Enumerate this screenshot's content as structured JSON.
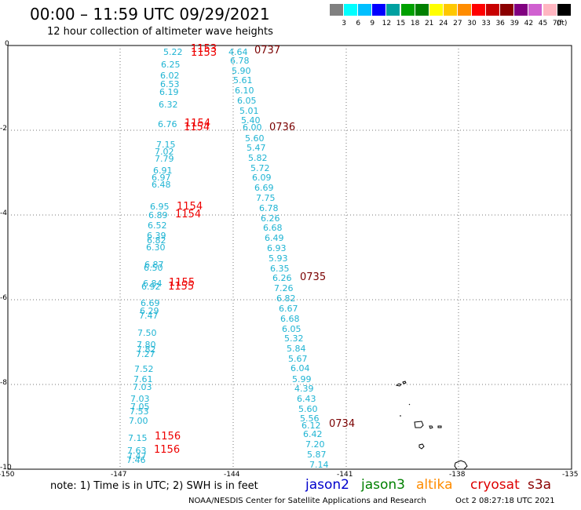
{
  "header": {
    "title": "00:00 – 11:59 UTC 09/29/2021",
    "subtitle": "12 hour collection of altimeter wave heights"
  },
  "legend": {
    "colors": [
      "#808080",
      "#00ffff",
      "#00bfff",
      "#0000ff",
      "#00a0a0",
      "#00a000",
      "#008000",
      "#ffff00",
      "#ffc800",
      "#ff8c00",
      "#ff0000",
      "#c80000",
      "#8b0000",
      "#800080",
      "#d060d0",
      "#ffb6c1",
      "#000000"
    ],
    "labels": [
      "3",
      "6",
      "9",
      "12",
      "15",
      "18",
      "21",
      "24",
      "27",
      "30",
      "33",
      "36",
      "39",
      "42",
      "45",
      "70",
      "(ft)"
    ]
  },
  "map": {
    "x_ticks": [
      "-150",
      "-147",
      "-144",
      "-141",
      "-138",
      "-135"
    ],
    "y_ticks": [
      "0",
      "-2",
      "-4",
      "-6",
      "-8",
      "-10"
    ],
    "track_west_values": [
      "5.22",
      "6.25",
      "6.02",
      "6.53",
      "6.19",
      "6.32",
      "6.76",
      "7.15",
      "7.02",
      "7.79",
      "6.91",
      "6.97",
      "6.48",
      "6.95",
      "6.89",
      "6.52",
      "6.39",
      "6.82",
      "6.30",
      "6.87",
      "6.50",
      "6.84",
      "6.92",
      "6.69",
      "6.29",
      "7.47",
      "7.50",
      "7.80",
      "7.82",
      "7.27",
      "7.52",
      "7.61",
      "7.03",
      "7.03",
      "7.05",
      "7.53",
      "7.00",
      "7.15",
      "7.63",
      "7.47",
      "7.46"
    ],
    "track_west_times": [
      "1153",
      "1154",
      "1154",
      "1154",
      "1155",
      "1156",
      "1156"
    ],
    "track_east_values": [
      "4.64",
      "6.78",
      "5.90",
      "5.61",
      "6.10",
      "6.05",
      "5.01",
      "5.40",
      "6.00",
      "5.60",
      "5.47",
      "5.82",
      "5.72",
      "6.09",
      "6.69",
      "7.75",
      "6.78",
      "6.26",
      "6.68",
      "6.49",
      "6.93",
      "5.93",
      "6.35",
      "6.26",
      "7.26",
      "6.82",
      "6.67",
      "6.68",
      "6.05",
      "5.32",
      "5.84",
      "5.67",
      "6.04",
      "5.99",
      "4.39",
      "6.43",
      "5.60",
      "5.56",
      "6.12",
      "6.42",
      "7.20",
      "5.87",
      "7.14"
    ],
    "track_east_times": [
      "0737",
      "0736",
      "0735",
      "0734"
    ]
  },
  "footer": {
    "note": "note:  1) Time is in UTC;  2) SWH is in feet",
    "satellites": [
      {
        "name": "jason2",
        "color": "#0000cc"
      },
      {
        "name": "jason3",
        "color": "#008000"
      },
      {
        "name": "altika",
        "color": "#ff8c00"
      },
      {
        "name": "cryosat",
        "color": "#dd0000"
      },
      {
        "name": "s3a",
        "color": "#8b0000"
      }
    ],
    "credit": "NOAA/NESDIS Center for Satellite Applications and Research",
    "timestamp": "Oct  2 08:27:18 UTC 2021"
  }
}
